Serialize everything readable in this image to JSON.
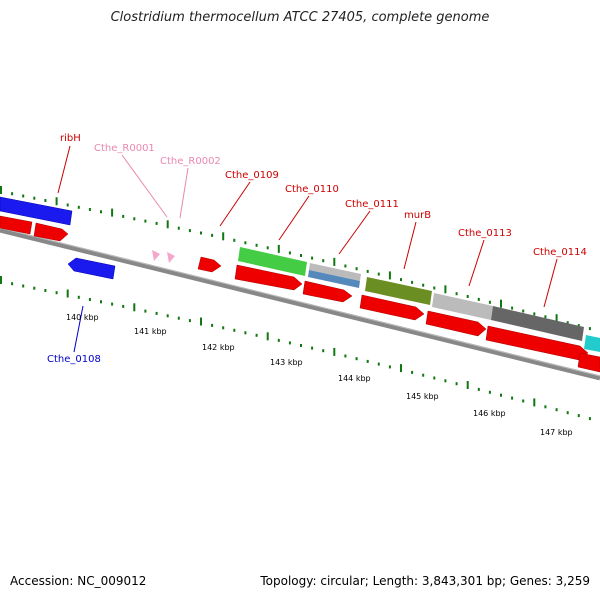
{
  "title": "Clostridium thermocellum ATCC 27405, complete genome",
  "footer": {
    "accession": "Accession: NC_009012",
    "stats": "Topology: circular; Length: 3,843,301 bp; Genes: 3,259"
  },
  "colors": {
    "backbone": "#888888",
    "cds_forward": "#ee0000",
    "blue_feature": "#1a1aee",
    "rna_feature": "#f4a6cc",
    "tick": "#117711",
    "gene_label": "#cc0000",
    "rna_label": "#e888b0",
    "reverse_label": "#0000cc"
  },
  "scale_labels": [
    "140 kbp",
    "141 kbp",
    "142 kbp",
    "143 kbp",
    "144 kbp",
    "145 kbp",
    "146 kbp",
    "147 kbp"
  ],
  "gene_labels": [
    {
      "id": "ribH",
      "text": "ribH",
      "kind": "gene"
    },
    {
      "id": "cthe-r0001",
      "text": "Cthe_R0001",
      "kind": "rna"
    },
    {
      "id": "cthe-r0002",
      "text": "Cthe_R0002",
      "kind": "rna"
    },
    {
      "id": "cthe-0109",
      "text": "Cthe_0109",
      "kind": "gene"
    },
    {
      "id": "cthe-0110",
      "text": "Cthe_0110",
      "kind": "gene"
    },
    {
      "id": "cthe-0111",
      "text": "Cthe_0111",
      "kind": "gene"
    },
    {
      "id": "murb",
      "text": "murB",
      "kind": "gene"
    },
    {
      "id": "cthe-0113",
      "text": "Cthe_0113",
      "kind": "gene"
    },
    {
      "id": "cthe-0114",
      "text": "Cthe_0114",
      "kind": "gene"
    },
    {
      "id": "cthe-0108",
      "text": "Cthe_0108",
      "kind": "reverse"
    }
  ],
  "feature_blocks": [
    {
      "id": "ribh",
      "color": "#1a1aee"
    },
    {
      "id": "cthe-0109",
      "color": "#44cc44"
    },
    {
      "id": "cthe-0110",
      "color": "#5588bb"
    },
    {
      "id": "cthe-0111",
      "color": "#6b8e23"
    },
    {
      "id": "murb",
      "color": "#bbbbbb"
    },
    {
      "id": "cthe-0113",
      "color": "#666666"
    },
    {
      "id": "cthe-0114",
      "color": "#22cccc"
    }
  ]
}
